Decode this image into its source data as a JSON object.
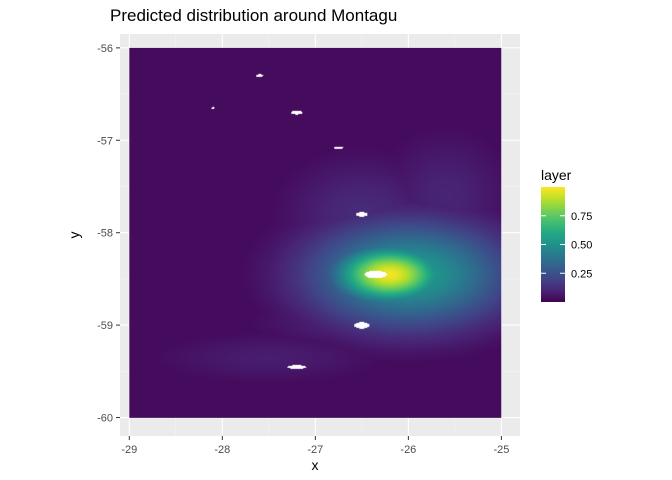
{
  "chart_data": {
    "type": "heatmap",
    "title": "Predicted distribution around Montagu",
    "xlabel": "x",
    "ylabel": "y",
    "xlim": [
      -29.1,
      -24.8
    ],
    "ylim": [
      -60.2,
      -55.85
    ],
    "x_ticks": [
      -29,
      -28,
      -27,
      -26,
      -25
    ],
    "x_tick_labels": [
      "-29",
      "-28",
      "-27",
      "-26",
      "-25"
    ],
    "y_ticks": [
      -56,
      -57,
      -58,
      -59,
      -60
    ],
    "y_tick_labels": [
      "-56",
      "-57",
      "-58",
      "-59",
      "-60"
    ],
    "grid": true,
    "colormap": "viridis",
    "raster_extent": {
      "x": [
        -29,
        -25
      ],
      "y": [
        -60,
        -56
      ]
    },
    "background_level": 0.03,
    "hotspots": [
      {
        "x": -26.2,
        "y": -58.45,
        "peak": 0.98,
        "spread_x": 0.42,
        "spread_y": 0.22
      },
      {
        "x": -26.0,
        "y": -58.45,
        "peak": 0.55,
        "spread_x": 0.75,
        "spread_y": 0.4
      },
      {
        "x": -26.5,
        "y": -57.8,
        "peak": 0.12,
        "spread_x": 0.6,
        "spread_y": 0.45
      },
      {
        "x": -26.4,
        "y": -58.95,
        "peak": 0.12,
        "spread_x": 0.8,
        "spread_y": 0.2
      },
      {
        "x": -27.5,
        "y": -59.35,
        "peak": 0.08,
        "spread_x": 0.9,
        "spread_y": 0.2
      },
      {
        "x": -25.6,
        "y": -57.6,
        "peak": 0.1,
        "spread_x": 0.5,
        "spread_y": 0.5
      }
    ],
    "islands": [
      {
        "x": -26.35,
        "y": -58.45,
        "rx": 0.12,
        "ry": 0.04
      },
      {
        "x": -26.5,
        "y": -59.0,
        "rx": 0.08,
        "ry": 0.035
      },
      {
        "x": -26.5,
        "y": -57.8,
        "rx": 0.06,
        "ry": 0.025
      },
      {
        "x": -27.2,
        "y": -56.7,
        "rx": 0.06,
        "ry": 0.02
      },
      {
        "x": -27.6,
        "y": -56.3,
        "rx": 0.04,
        "ry": 0.015
      },
      {
        "x": -26.75,
        "y": -57.08,
        "rx": 0.05,
        "ry": 0.015
      },
      {
        "x": -27.2,
        "y": -59.45,
        "rx": 0.1,
        "ry": 0.02
      },
      {
        "x": -28.1,
        "y": -56.65,
        "rx": 0.015,
        "ry": 0.01
      }
    ],
    "legend": {
      "title": "layer",
      "placement": "right",
      "range": [
        0,
        1
      ],
      "ticks": [
        0.25,
        0.5,
        0.75
      ],
      "tick_labels": [
        "0.25",
        "0.50",
        "0.75"
      ]
    },
    "colors": {
      "panel_bg": "#EBEBEB",
      "grid_major": "#FFFFFF",
      "grid_minor": "#F4F4F4",
      "axis_text": "#4D4D4D",
      "title_text": "#000000"
    }
  }
}
